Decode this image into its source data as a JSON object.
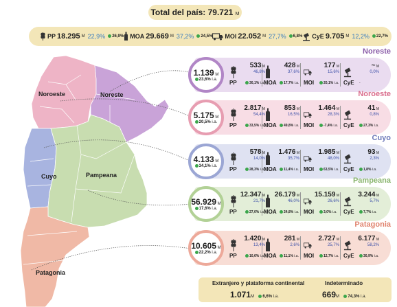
{
  "total": {
    "label": "Total del país: 79.721",
    "unit": "M"
  },
  "summary": [
    {
      "label": "PP",
      "value": "18.295",
      "unit": "M",
      "share": "22,9%",
      "var": "26,9%",
      "var_unit": "i.a."
    },
    {
      "label": "MOA",
      "value": "29.669",
      "unit": "M",
      "share": "37,2%",
      "var": "24,5%",
      "var_unit": "i.a."
    },
    {
      "label": "MOI",
      "value": "22.052",
      "unit": "M",
      "share": "27,7%",
      "var": "6,8%",
      "var_unit": "i.a."
    },
    {
      "label": "CyE",
      "value": "9.705",
      "unit": "M",
      "share": "12,2%",
      "var": "22,7%",
      "var_unit": "i.a."
    }
  ],
  "map_labels": {
    "noroeste": "Noroeste",
    "noreste": "Noreste",
    "cuyo": "Cuyo",
    "pampeana": "Pampeana",
    "patagonia": "Patagonia"
  },
  "regions": [
    {
      "title": "Noreste",
      "color": "#8a5ca8",
      "bg": "#eadcf0",
      "ring": "#b186c6",
      "total": "1.139",
      "unit": "M",
      "var": "23,6%",
      "var_unit": "i.a.",
      "cells": [
        {
          "name": "PP",
          "value": "533",
          "unit": "M",
          "share": "46,8%",
          "var": "30,1%"
        },
        {
          "name": "MOA",
          "value": "428",
          "unit": "M",
          "share": "37,6%",
          "var": "17,7%"
        },
        {
          "name": "MOI",
          "value": "177",
          "unit": "M",
          "share": "15,6%",
          "var": "20,1%"
        },
        {
          "name": "CyE",
          "value": "~",
          "unit": "M",
          "share": "0,0%",
          "var": "-"
        }
      ]
    },
    {
      "title": "Noroeste",
      "color": "#d96b8b",
      "bg": "#f8dde5",
      "ring": "#e79db1",
      "total": "5.175",
      "unit": "M",
      "var": "20,5%",
      "var_unit": "i.a.",
      "cells": [
        {
          "name": "PP",
          "value": "2.817",
          "unit": "M",
          "share": "54,4%",
          "var": "33,5%"
        },
        {
          "name": "MOA",
          "value": "853",
          "unit": "M",
          "share": "16,5%",
          "var": "49,8%"
        },
        {
          "name": "MOI",
          "value": "1.464",
          "unit": "M",
          "share": "28,3%",
          "var": "-7,4%"
        },
        {
          "name": "CyE",
          "value": "41",
          "unit": "M",
          "share": "0,8%",
          "var": "27,3%"
        }
      ]
    },
    {
      "title": "Cuyo",
      "color": "#6c79b9",
      "bg": "#dfe2f2",
      "ring": "#9ba6d4",
      "total": "4.133",
      "unit": "M",
      "var": "34,1%",
      "var_unit": "i.a.",
      "cells": [
        {
          "name": "PP",
          "value": "578",
          "unit": "M",
          "share": "14,0%",
          "var": "28,3%"
        },
        {
          "name": "MOA",
          "value": "1.476",
          "unit": "M",
          "share": "35,7%",
          "var": "11,4%"
        },
        {
          "name": "MOI",
          "value": "1.985",
          "unit": "M",
          "share": "48,0%",
          "var": "63,5%"
        },
        {
          "name": "CyE",
          "value": "93",
          "unit": "M",
          "share": "2,3%",
          "var": "1,8%"
        }
      ]
    },
    {
      "title": "Pampeana",
      "color": "#8ab56e",
      "bg": "#e3eed8",
      "ring": "#b2d196",
      "total": "56.929",
      "unit": "M",
      "var": "17,6%",
      "var_unit": "i.a.",
      "cells": [
        {
          "name": "PP",
          "value": "12.347",
          "unit": "M",
          "share": "21,7%",
          "var": "27,0%"
        },
        {
          "name": "MOA",
          "value": "26.179",
          "unit": "M",
          "share": "46,0%",
          "var": "24,8%"
        },
        {
          "name": "MOI",
          "value": "15.159",
          "unit": "M",
          "share": "26,6%",
          "var": "3,0%"
        },
        {
          "name": "CyE",
          "value": "3.244",
          "unit": "M",
          "share": "5,7%",
          "var": "7,7%"
        }
      ]
    },
    {
      "title": "Patagonia",
      "color": "#e0836e",
      "bg": "#f8ddd5",
      "ring": "#eda99a",
      "total": "10.605",
      "unit": "M",
      "var": "22,2%",
      "var_unit": "i.a.",
      "cells": [
        {
          "name": "PP",
          "value": "1.420",
          "unit": "M",
          "share": "13,4%",
          "var": "10,6%"
        },
        {
          "name": "MOA",
          "value": "281",
          "unit": "M",
          "share": "2,6%",
          "var": "11,1%"
        },
        {
          "name": "MOI",
          "value": "2.727",
          "unit": "M",
          "share": "25,7%",
          "var": "12,7%"
        },
        {
          "name": "CyE",
          "value": "6.177",
          "unit": "M",
          "share": "58,2%",
          "var": "30,9%"
        }
      ]
    }
  ],
  "footer": {
    "ext_title": "Extranjero y plataforma continental",
    "ext_value": "1.071",
    "ext_unit": "M",
    "ext_var": "6,6%",
    "ind_title": "Indeterminado",
    "ind_value": "669",
    "ind_unit": "M",
    "ind_var": "74,3%",
    "var_unit": "i.a."
  }
}
